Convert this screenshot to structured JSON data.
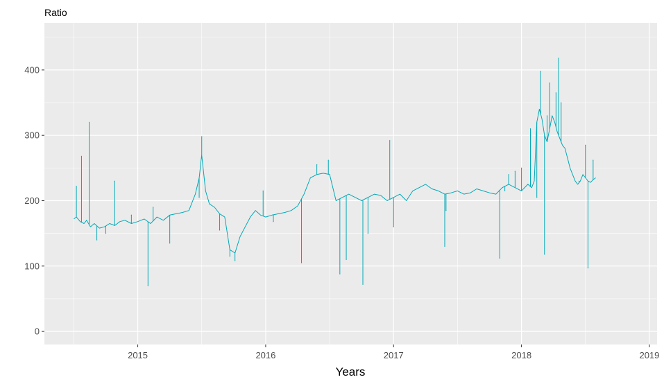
{
  "chart_data": {
    "type": "line",
    "title": "Ratio",
    "xlabel": "Years",
    "ylabel": "",
    "xlim": [
      2014.27,
      2019.06
    ],
    "ylim": [
      -20,
      472
    ],
    "x_ticks": [
      2015,
      2016,
      2017,
      2018,
      2019
    ],
    "x_tick_labels": [
      "2015",
      "2016",
      "2017",
      "2018",
      "2019"
    ],
    "y_ticks": [
      0,
      100,
      200,
      300,
      400
    ],
    "y_tick_labels": [
      "0",
      "100",
      "200",
      "300",
      "400"
    ],
    "grid": true,
    "legend": "none",
    "line_color": "#00A9B7",
    "panel_color": "#EBEBEB",
    "series": [
      {
        "x": [
          2014.5,
          2014.52,
          2014.55,
          2014.58,
          2014.6,
          2014.63,
          2014.66,
          2014.7,
          2014.74,
          2014.78,
          2014.82,
          2014.86,
          2014.9,
          2014.95,
          2015.0,
          2015.05,
          2015.1,
          2015.15,
          2015.2,
          2015.25,
          2015.3,
          2015.35,
          2015.4,
          2015.45,
          2015.48,
          2015.5,
          2015.53,
          2015.56,
          2015.6,
          2015.64,
          2015.68,
          2015.72,
          2015.76,
          2015.8,
          2015.84,
          2015.88,
          2015.92,
          2015.96,
          2016.0,
          2016.05,
          2016.1,
          2016.15,
          2016.2,
          2016.25,
          2016.3,
          2016.35,
          2016.4,
          2016.45,
          2016.5,
          2016.55,
          2016.6,
          2016.65,
          2016.7,
          2016.75,
          2016.8,
          2016.85,
          2016.9,
          2016.95,
          2017.0,
          2017.05,
          2017.1,
          2017.15,
          2017.2,
          2017.25,
          2017.3,
          2017.35,
          2017.4,
          2017.45,
          2017.5,
          2017.55,
          2017.6,
          2017.65,
          2017.7,
          2017.75,
          2017.8,
          2017.85,
          2017.9,
          2017.95,
          2018.0,
          2018.05,
          2018.08,
          2018.1,
          2018.12,
          2018.14,
          2018.16,
          2018.18,
          2018.2,
          2018.22,
          2018.24,
          2018.26,
          2018.28,
          2018.3,
          2018.32,
          2018.34,
          2018.36,
          2018.38,
          2018.4,
          2018.42,
          2018.44,
          2018.46,
          2018.48,
          2018.5,
          2018.52,
          2018.54,
          2018.56,
          2018.58
        ],
        "values": [
          172,
          175,
          168,
          165,
          170,
          160,
          165,
          158,
          160,
          165,
          162,
          168,
          170,
          165,
          168,
          172,
          165,
          175,
          170,
          178,
          180,
          182,
          185,
          210,
          235,
          270,
          215,
          195,
          190,
          180,
          175,
          125,
          120,
          145,
          160,
          175,
          185,
          178,
          175,
          178,
          180,
          182,
          185,
          192,
          210,
          235,
          240,
          242,
          240,
          200,
          205,
          210,
          205,
          200,
          205,
          210,
          208,
          200,
          205,
          210,
          200,
          215,
          220,
          225,
          218,
          215,
          210,
          212,
          215,
          210,
          212,
          218,
          215,
          212,
          210,
          220,
          225,
          220,
          215,
          225,
          220,
          230,
          320,
          340,
          325,
          300,
          290,
          310,
          330,
          320,
          305,
          295,
          285,
          280,
          265,
          250,
          240,
          230,
          225,
          230,
          240,
          235,
          230,
          228,
          232,
          235
        ]
      },
      {
        "x": [
          2014.52,
          2014.56,
          2014.62,
          2014.68,
          2014.75,
          2014.82,
          2014.95,
          2015.08,
          2015.12,
          2015.25,
          2015.48,
          2015.5,
          2015.64,
          2015.72,
          2015.76,
          2015.98,
          2016.06,
          2016.28,
          2016.4,
          2016.49,
          2016.58,
          2016.63,
          2016.76,
          2016.8,
          2016.97,
          2017.0,
          2017.4,
          2017.41,
          2017.83,
          2017.87,
          2017.9,
          2017.95,
          2018.0,
          2018.07,
          2018.12,
          2018.15,
          2018.18,
          2018.2,
          2018.22,
          2018.27,
          2018.29,
          2018.31,
          2018.45,
          2018.5,
          2018.52,
          2018.56
        ],
        "values": [
          222,
          268,
          320,
          140,
          150,
          230,
          178,
          70,
          190,
          135,
          205,
          298,
          155,
          115,
          108,
          215,
          168,
          105,
          255,
          262,
          88,
          110,
          72,
          150,
          292,
          160,
          130,
          185,
          112,
          215,
          240,
          245,
          250,
          310,
          205,
          398,
          118,
          330,
          380,
          365,
          418,
          350,
          230,
          285,
          97,
          262
        ]
      }
    ]
  }
}
